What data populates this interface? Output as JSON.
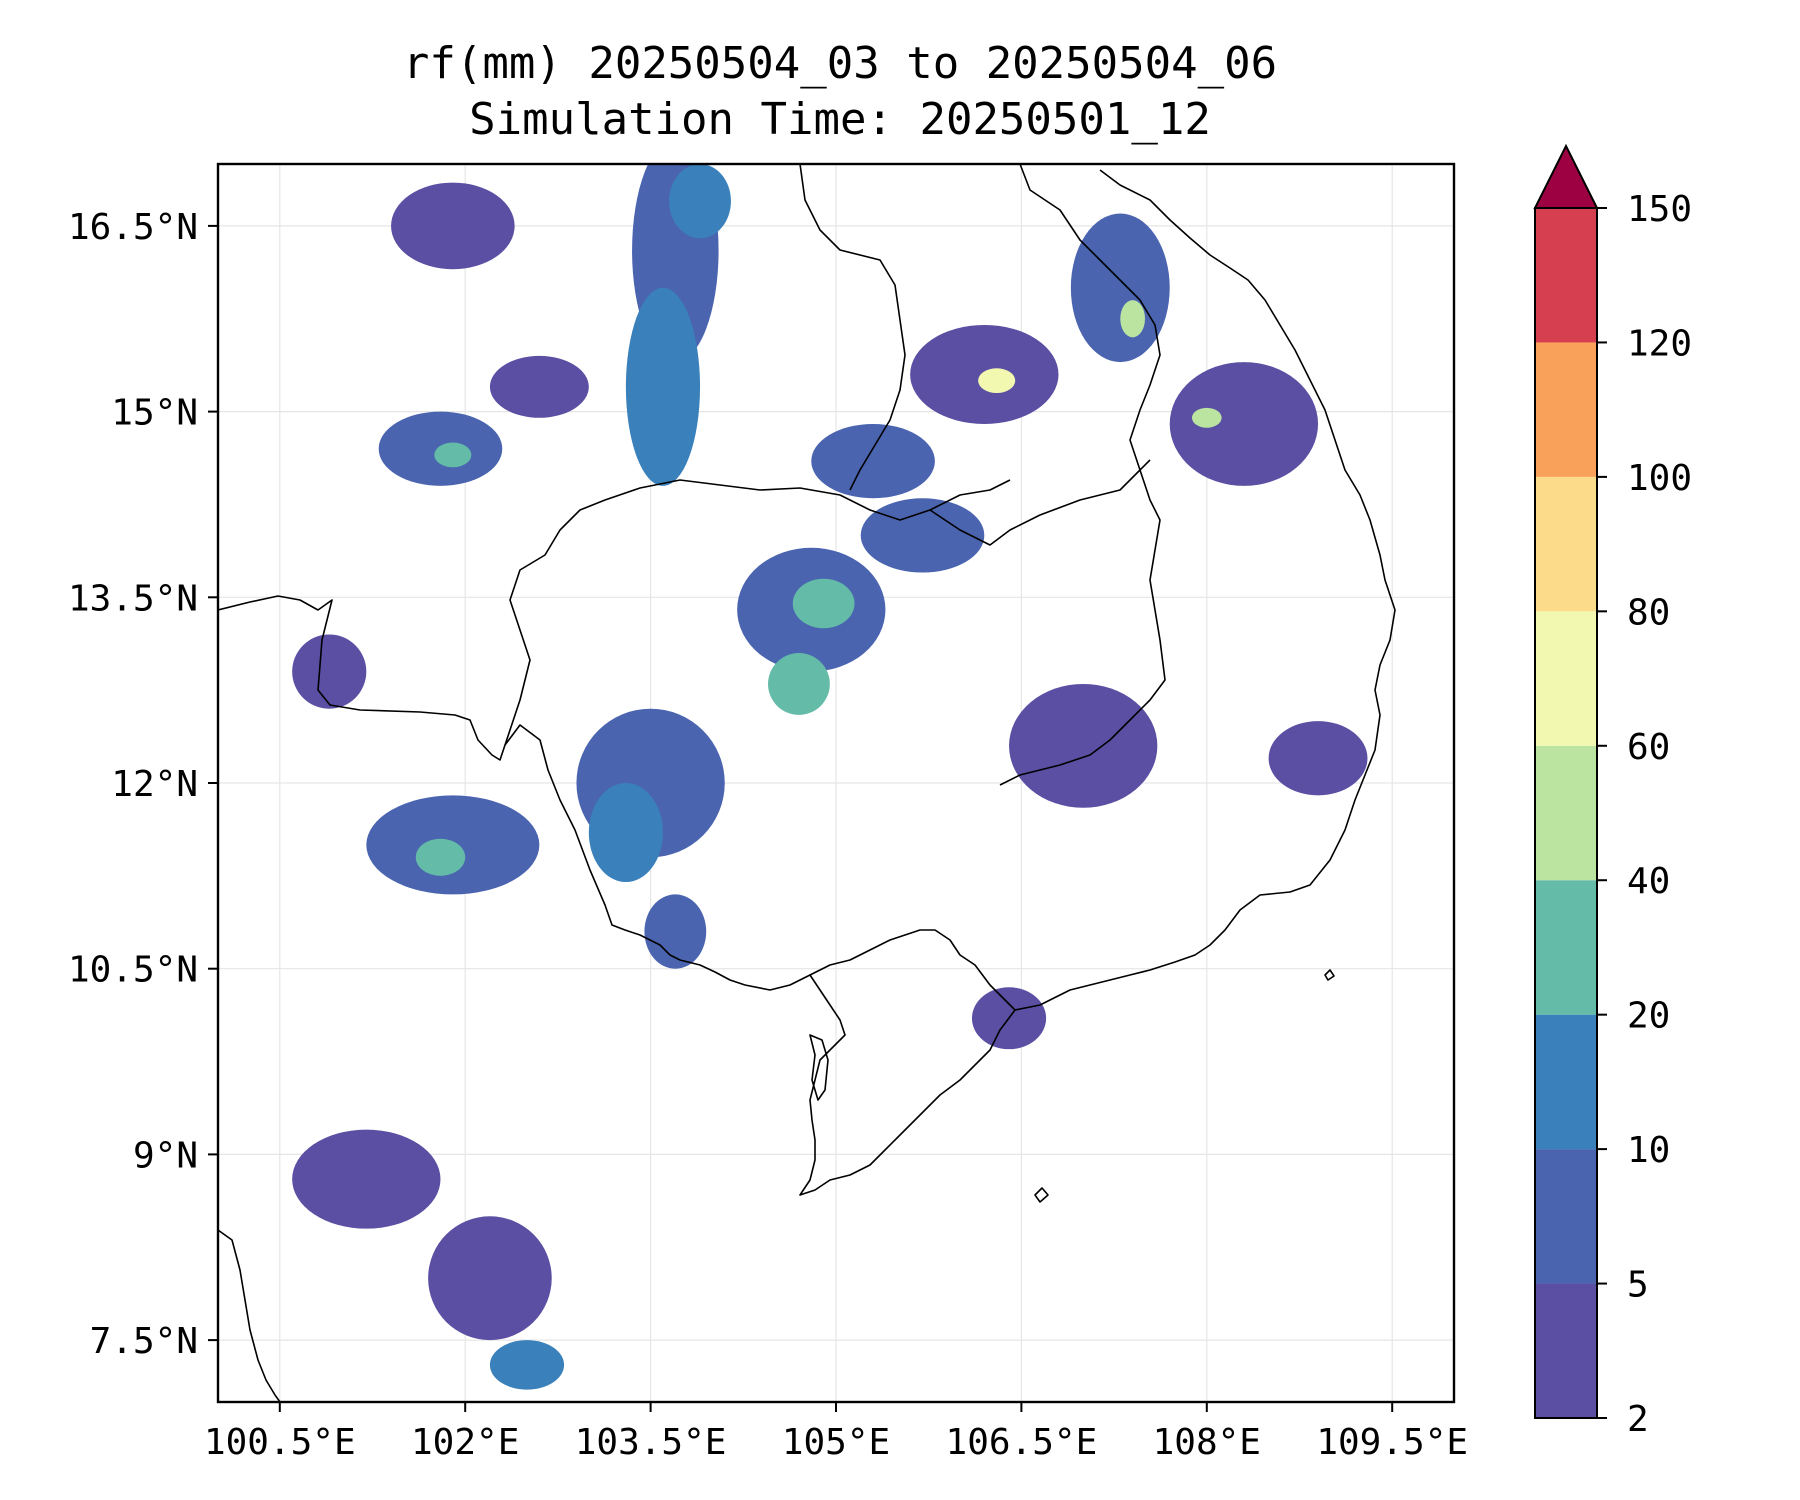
{
  "title": {
    "line1": "rf(mm) 20250504_03 to 20250504_06",
    "line2": "Simulation Time: 20250501_12"
  },
  "map": {
    "lon_range": [
      100.0,
      110.0
    ],
    "lat_range": [
      7.0,
      17.0
    ],
    "gridlines": true
  },
  "x_ticks": [
    {
      "value": 100.5,
      "label": "100.5°E"
    },
    {
      "value": 102.0,
      "label": "102°E"
    },
    {
      "value": 103.5,
      "label": "103.5°E"
    },
    {
      "value": 105.0,
      "label": "105°E"
    },
    {
      "value": 106.5,
      "label": "106.5°E"
    },
    {
      "value": 108.0,
      "label": "108°E"
    },
    {
      "value": 109.5,
      "label": "109.5°E"
    }
  ],
  "y_ticks": [
    {
      "value": 16.5,
      "label": "16.5°N"
    },
    {
      "value": 15.0,
      "label": "15°N"
    },
    {
      "value": 13.5,
      "label": "13.5°N"
    },
    {
      "value": 12.0,
      "label": "12°N"
    },
    {
      "value": 10.5,
      "label": "10.5°N"
    },
    {
      "value": 9.0,
      "label": "9°N"
    },
    {
      "value": 7.5,
      "label": "7.5°N"
    }
  ],
  "colorbar": {
    "levels": [
      {
        "value": 2,
        "label": "2"
      },
      {
        "value": 5,
        "label": "5"
      },
      {
        "value": 10,
        "label": "10"
      },
      {
        "value": 20,
        "label": "20"
      },
      {
        "value": 40,
        "label": "40"
      },
      {
        "value": 60,
        "label": "60"
      },
      {
        "value": 80,
        "label": "80"
      },
      {
        "value": 100,
        "label": "100"
      },
      {
        "value": 120,
        "label": "120"
      },
      {
        "value": 150,
        "label": "150"
      }
    ],
    "colors": [
      "#5a4fa3",
      "#4a64b0",
      "#3a80ba",
      "#63bba8",
      "#bce4a1",
      "#f2f8b0",
      "#fcdc8a",
      "#f9a05a",
      "#d63f4f"
    ],
    "extend_color": "#9e0142"
  },
  "rain_cells": [
    {
      "lon": 103.7,
      "lat": 16.3,
      "rx": 0.35,
      "ry": 0.9,
      "level": 1
    },
    {
      "lon": 103.6,
      "lat": 15.2,
      "rx": 0.3,
      "ry": 0.8,
      "level": 2
    },
    {
      "lon": 103.9,
      "lat": 16.7,
      "rx": 0.25,
      "ry": 0.3,
      "level": 2
    },
    {
      "lon": 101.9,
      "lat": 16.5,
      "rx": 0.5,
      "ry": 0.35,
      "level": 0
    },
    {
      "lon": 101.8,
      "lat": 14.7,
      "rx": 0.5,
      "ry": 0.3,
      "level": 1
    },
    {
      "lon": 101.9,
      "lat": 14.65,
      "rx": 0.15,
      "ry": 0.1,
      "level": 3
    },
    {
      "lon": 102.6,
      "lat": 15.2,
      "rx": 0.4,
      "ry": 0.25,
      "level": 0
    },
    {
      "lon": 104.8,
      "lat": 13.4,
      "rx": 0.6,
      "ry": 0.5,
      "level": 1
    },
    {
      "lon": 104.9,
      "lat": 13.45,
      "rx": 0.25,
      "ry": 0.2,
      "level": 3
    },
    {
      "lon": 104.7,
      "lat": 12.8,
      "rx": 0.25,
      "ry": 0.25,
      "level": 3
    },
    {
      "lon": 105.7,
      "lat": 14.0,
      "rx": 0.5,
      "ry": 0.3,
      "level": 1
    },
    {
      "lon": 106.2,
      "lat": 15.3,
      "rx": 0.6,
      "ry": 0.4,
      "level": 0
    },
    {
      "lon": 106.3,
      "lat": 15.25,
      "rx": 0.15,
      "ry": 0.1,
      "level": 5
    },
    {
      "lon": 107.3,
      "lat": 16.0,
      "rx": 0.4,
      "ry": 0.6,
      "level": 1
    },
    {
      "lon": 107.4,
      "lat": 15.75,
      "rx": 0.1,
      "ry": 0.15,
      "level": 4
    },
    {
      "lon": 108.3,
      "lat": 14.9,
      "rx": 0.6,
      "ry": 0.5,
      "level": 0
    },
    {
      "lon": 108.0,
      "lat": 14.95,
      "rx": 0.12,
      "ry": 0.08,
      "level": 4
    },
    {
      "lon": 103.5,
      "lat": 12.0,
      "rx": 0.6,
      "ry": 0.6,
      "level": 1
    },
    {
      "lon": 103.3,
      "lat": 11.6,
      "rx": 0.3,
      "ry": 0.4,
      "level": 2
    },
    {
      "lon": 101.9,
      "lat": 11.5,
      "rx": 0.7,
      "ry": 0.4,
      "level": 1
    },
    {
      "lon": 101.8,
      "lat": 11.4,
      "rx": 0.2,
      "ry": 0.15,
      "level": 3
    },
    {
      "lon": 107.0,
      "lat": 12.3,
      "rx": 0.6,
      "ry": 0.5,
      "level": 0
    },
    {
      "lon": 108.9,
      "lat": 12.2,
      "rx": 0.4,
      "ry": 0.3,
      "level": 0
    },
    {
      "lon": 102.2,
      "lat": 8.0,
      "rx": 0.5,
      "ry": 0.5,
      "level": 0
    },
    {
      "lon": 102.5,
      "lat": 7.3,
      "rx": 0.3,
      "ry": 0.2,
      "level": 2
    },
    {
      "lon": 101.2,
      "lat": 8.8,
      "rx": 0.6,
      "ry": 0.4,
      "level": 0
    },
    {
      "lon": 106.4,
      "lat": 10.1,
      "rx": 0.3,
      "ry": 0.25,
      "level": 0
    },
    {
      "lon": 100.9,
      "lat": 12.9,
      "rx": 0.3,
      "ry": 0.3,
      "level": 0
    },
    {
      "lon": 103.7,
      "lat": 10.8,
      "rx": 0.25,
      "ry": 0.3,
      "level": 1
    },
    {
      "lon": 105.3,
      "lat": 14.6,
      "rx": 0.5,
      "ry": 0.3,
      "level": 1
    }
  ]
}
